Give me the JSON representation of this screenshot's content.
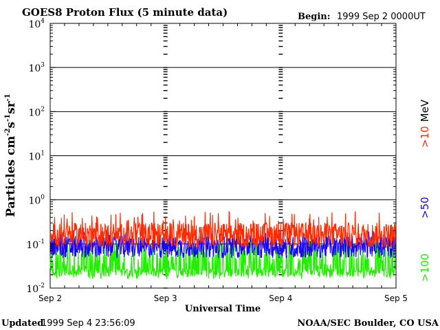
{
  "chart_data": {
    "type": "line",
    "title": "GOES8 Proton Flux (5 minute data)",
    "begin_label": "Begin:",
    "begin_value": "1999 Sep 2 0000UT",
    "ylabel": "Particles cm-2s-1sr-1",
    "ylabel_parts": {
      "main": "Particles cm",
      "e1": "-2",
      "s": "s",
      "e2": "-1",
      "sr": "sr",
      "e3": "-1"
    },
    "xlabel": "Universal Time",
    "yscale": "log",
    "ylim": [
      0.01,
      10000
    ],
    "y_ticks": [
      {
        "base": "10",
        "exp": "4",
        "value": 10000
      },
      {
        "base": "10",
        "exp": "3",
        "value": 1000
      },
      {
        "base": "10",
        "exp": "2",
        "value": 100
      },
      {
        "base": "10",
        "exp": "1",
        "value": 10
      },
      {
        "base": "10",
        "exp": "0",
        "value": 1
      },
      {
        "base": "10",
        "exp": "-1",
        "value": 0.1
      },
      {
        "base": "10",
        "exp": "-2",
        "value": 0.01
      }
    ],
    "x_ticks": [
      "Sep 2",
      "Sep 3",
      "Sep 4",
      "Sep 5"
    ],
    "xlim_days": [
      0,
      3
    ],
    "grid": true,
    "series": [
      {
        "name": ">10 MeV",
        "color": "#ff2a00",
        "base": 0.16,
        "spread": 0.28,
        "spike": 0.55
      },
      {
        "name": ">50",
        "color": "#1a00ff",
        "base": 0.085,
        "spread": 0.25,
        "spike": 0.2
      },
      {
        "name": ">100",
        "color": "#22ee00",
        "base": 0.045,
        "spread": 0.45,
        "spike": 0.11
      }
    ],
    "legend": [
      {
        "text": ">10",
        "suffix": " MeV",
        "color": "#ff2a00",
        "suffix_color": "#000000"
      },
      {
        "text": ">50",
        "suffix": "",
        "color": "#1a00ff",
        "suffix_color": "#000000"
      },
      {
        "text": ">100",
        "suffix": "",
        "color": "#22ee00",
        "suffix_color": "#000000"
      }
    ]
  },
  "footer": {
    "updated_label": "Updated",
    "updated_value": "1999 Sep  4 23:56:09",
    "credit": "NOAA/SEC Boulder, CO USA"
  }
}
